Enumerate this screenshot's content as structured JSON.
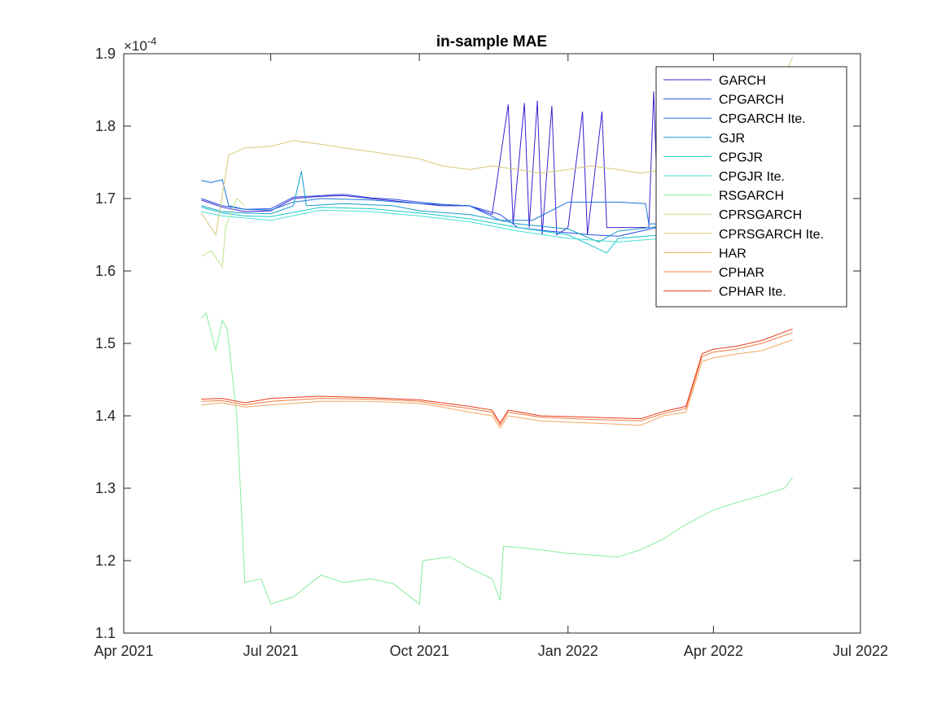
{
  "chart_data": {
    "type": "line",
    "title": "in-sample MAE",
    "xlabel": "",
    "ylabel": "",
    "y_exponent_label": "×10",
    "y_exponent_power": "-4",
    "xlim": [
      "2021-04-01",
      "2022-07-01"
    ],
    "ylim": [
      1.1,
      1.9
    ],
    "y_ticks": [
      "1.1",
      "1.2",
      "1.3",
      "1.4",
      "1.5",
      "1.6",
      "1.7",
      "1.8",
      "1.9"
    ],
    "x_ticks": [
      {
        "date": "2021-04-01",
        "label": "Apr 2021"
      },
      {
        "date": "2021-07-01",
        "label": "Jul 2021"
      },
      {
        "date": "2021-10-01",
        "label": "Oct 2021"
      },
      {
        "date": "2022-01-01",
        "label": "Jan 2022"
      },
      {
        "date": "2022-04-01",
        "label": "Apr 2022"
      },
      {
        "date": "2022-07-01",
        "label": "Jul 2022"
      }
    ],
    "grid": false,
    "legend_position": "top-right",
    "series": [
      {
        "name": "GARCH",
        "color": "#3a1fd0",
        "points": [
          [
            "2021-05-19",
            1.698
          ],
          [
            "2021-06-01",
            1.688
          ],
          [
            "2021-06-15",
            1.682
          ],
          [
            "2021-07-01",
            1.683
          ],
          [
            "2021-07-15",
            1.7
          ],
          [
            "2021-08-01",
            1.703
          ],
          [
            "2021-08-15",
            1.704
          ],
          [
            "2021-09-01",
            1.7
          ],
          [
            "2021-09-15",
            1.697
          ],
          [
            "2021-10-01",
            1.693
          ],
          [
            "2021-10-15",
            1.69
          ],
          [
            "2021-11-01",
            1.69
          ],
          [
            "2021-11-15",
            1.678
          ],
          [
            "2021-11-25",
            1.83
          ],
          [
            "2021-11-28",
            1.665
          ],
          [
            "2021-12-05",
            1.832
          ],
          [
            "2021-12-08",
            1.66
          ],
          [
            "2021-12-13",
            1.835
          ],
          [
            "2021-12-16",
            1.65
          ],
          [
            "2021-12-22",
            1.828
          ],
          [
            "2021-12-25",
            1.65
          ],
          [
            "2022-01-01",
            1.66
          ],
          [
            "2022-01-10",
            1.82
          ],
          [
            "2022-01-13",
            1.65
          ],
          [
            "2022-01-22",
            1.82
          ],
          [
            "2022-01-25",
            1.66
          ],
          [
            "2022-02-10",
            1.66
          ],
          [
            "2022-02-20",
            1.66
          ],
          [
            "2022-02-23",
            1.848
          ],
          [
            "2022-02-26",
            1.66
          ],
          [
            "2022-03-15",
            1.665
          ],
          [
            "2022-04-15",
            1.665
          ],
          [
            "2022-05-20",
            1.65
          ]
        ]
      },
      {
        "name": "CPGARCH",
        "color": "#2a4fe0",
        "points": [
          [
            "2021-05-19",
            1.7
          ],
          [
            "2021-06-01",
            1.69
          ],
          [
            "2021-06-15",
            1.685
          ],
          [
            "2021-07-01",
            1.686
          ],
          [
            "2021-07-15",
            1.702
          ],
          [
            "2021-08-01",
            1.704
          ],
          [
            "2021-08-15",
            1.706
          ],
          [
            "2021-09-01",
            1.701
          ],
          [
            "2021-09-15",
            1.699
          ],
          [
            "2021-10-01",
            1.695
          ],
          [
            "2021-10-15",
            1.692
          ],
          [
            "2021-11-01",
            1.69
          ],
          [
            "2021-11-20",
            1.678
          ],
          [
            "2021-12-01",
            1.66
          ],
          [
            "2021-12-20",
            1.655
          ],
          [
            "2022-01-15",
            1.65
          ],
          [
            "2022-02-01",
            1.648
          ],
          [
            "2022-03-01",
            1.662
          ],
          [
            "2022-04-01",
            1.668
          ],
          [
            "2022-05-20",
            1.66
          ]
        ]
      },
      {
        "name": "CPGARCH Ite.",
        "color": "#1a74d8",
        "points": [
          [
            "2021-05-19",
            1.725
          ],
          [
            "2021-05-25",
            1.722
          ],
          [
            "2021-06-01",
            1.726
          ],
          [
            "2021-06-05",
            1.69
          ],
          [
            "2021-06-15",
            1.685
          ],
          [
            "2021-07-01",
            1.684
          ],
          [
            "2021-07-15",
            1.695
          ],
          [
            "2021-08-01",
            1.7
          ],
          [
            "2021-09-01",
            1.698
          ],
          [
            "2021-10-01",
            1.693
          ],
          [
            "2021-11-01",
            1.69
          ],
          [
            "2021-11-20",
            1.67
          ],
          [
            "2021-12-10",
            1.67
          ],
          [
            "2022-01-01",
            1.695
          ],
          [
            "2022-02-01",
            1.695
          ],
          [
            "2022-02-18",
            1.693
          ],
          [
            "2022-02-20",
            1.665
          ],
          [
            "2022-04-01",
            1.665
          ],
          [
            "2022-05-20",
            1.67
          ]
        ]
      },
      {
        "name": "GJR",
        "color": "#159cc8",
        "points": [
          [
            "2021-05-19",
            1.69
          ],
          [
            "2021-06-01",
            1.682
          ],
          [
            "2021-06-15",
            1.68
          ],
          [
            "2021-07-01",
            1.679
          ],
          [
            "2021-07-15",
            1.69
          ],
          [
            "2021-07-20",
            1.738
          ],
          [
            "2021-07-23",
            1.69
          ],
          [
            "2021-08-15",
            1.693
          ],
          [
            "2021-09-15",
            1.69
          ],
          [
            "2021-10-01",
            1.683
          ],
          [
            "2021-11-01",
            1.678
          ],
          [
            "2021-12-01",
            1.665
          ],
          [
            "2022-01-01",
            1.658
          ],
          [
            "2022-01-20",
            1.64
          ],
          [
            "2022-02-01",
            1.655
          ],
          [
            "2022-03-01",
            1.662
          ],
          [
            "2022-04-01",
            1.668
          ],
          [
            "2022-05-20",
            1.662
          ]
        ]
      },
      {
        "name": "CPGJR",
        "color": "#18c8cc",
        "points": [
          [
            "2021-05-19",
            1.688
          ],
          [
            "2021-06-01",
            1.68
          ],
          [
            "2021-06-15",
            1.676
          ],
          [
            "2021-07-01",
            1.675
          ],
          [
            "2021-08-01",
            1.688
          ],
          [
            "2021-09-01",
            1.686
          ],
          [
            "2021-10-01",
            1.68
          ],
          [
            "2021-11-01",
            1.672
          ],
          [
            "2021-12-01",
            1.66
          ],
          [
            "2022-01-01",
            1.65
          ],
          [
            "2022-01-25",
            1.625
          ],
          [
            "2022-02-01",
            1.645
          ],
          [
            "2022-03-01",
            1.65
          ],
          [
            "2022-04-01",
            1.655
          ],
          [
            "2022-05-20",
            1.665
          ]
        ]
      },
      {
        "name": "CPGJR Ite.",
        "color": "#48e0d4",
        "points": [
          [
            "2021-05-19",
            1.682
          ],
          [
            "2021-06-01",
            1.676
          ],
          [
            "2021-07-01",
            1.67
          ],
          [
            "2021-08-01",
            1.684
          ],
          [
            "2021-09-01",
            1.682
          ],
          [
            "2021-10-01",
            1.676
          ],
          [
            "2021-11-01",
            1.668
          ],
          [
            "2021-12-01",
            1.655
          ],
          [
            "2022-01-01",
            1.645
          ],
          [
            "2022-02-01",
            1.64
          ],
          [
            "2022-03-01",
            1.645
          ],
          [
            "2022-04-01",
            1.65
          ],
          [
            "2022-05-20",
            1.66
          ]
        ]
      },
      {
        "name": "RSGARCH",
        "color": "#86ec9c",
        "points": [
          [
            "2021-05-19",
            1.535
          ],
          [
            "2021-05-22",
            1.542
          ],
          [
            "2021-05-28",
            1.49
          ],
          [
            "2021-06-01",
            1.532
          ],
          [
            "2021-06-04",
            1.52
          ],
          [
            "2021-06-10",
            1.4
          ],
          [
            "2021-06-15",
            1.17
          ],
          [
            "2021-06-25",
            1.175
          ],
          [
            "2021-07-01",
            1.14
          ],
          [
            "2021-07-15",
            1.15
          ],
          [
            "2021-08-01",
            1.18
          ],
          [
            "2021-08-15",
            1.17
          ],
          [
            "2021-09-01",
            1.175
          ],
          [
            "2021-09-15",
            1.168
          ],
          [
            "2021-10-01",
            1.14
          ],
          [
            "2021-10-03",
            1.2
          ],
          [
            "2021-10-20",
            1.205
          ],
          [
            "2021-11-01",
            1.19
          ],
          [
            "2021-11-15",
            1.175
          ],
          [
            "2021-11-20",
            1.145
          ],
          [
            "2021-11-22",
            1.22
          ],
          [
            "2021-12-15",
            1.215
          ],
          [
            "2022-01-01",
            1.21
          ],
          [
            "2022-02-01",
            1.205
          ],
          [
            "2022-02-15",
            1.215
          ],
          [
            "2022-03-01",
            1.23
          ],
          [
            "2022-03-15",
            1.25
          ],
          [
            "2022-04-01",
            1.27
          ],
          [
            "2022-04-15",
            1.28
          ],
          [
            "2022-05-01",
            1.29
          ],
          [
            "2022-05-15",
            1.3
          ],
          [
            "2022-05-20",
            1.315
          ]
        ]
      },
      {
        "name": "CPRSGARCH",
        "color": "#bde38a",
        "points": [
          [
            "2021-05-19",
            1.62
          ],
          [
            "2021-05-25",
            1.628
          ],
          [
            "2021-06-01",
            1.605
          ],
          [
            "2021-06-03",
            1.66
          ],
          [
            "2021-06-10",
            1.7
          ],
          [
            "2021-06-15",
            1.69
          ]
        ]
      },
      {
        "name": "CPRSGARCH Ite.",
        "color": "#d5c878",
        "points": [
          [
            "2021-05-19",
            1.68
          ],
          [
            "2021-05-28",
            1.65
          ],
          [
            "2021-06-05",
            1.76
          ],
          [
            "2021-06-15",
            1.77
          ],
          [
            "2021-07-01",
            1.772
          ],
          [
            "2021-07-15",
            1.78
          ],
          [
            "2021-08-01",
            1.775
          ],
          [
            "2021-08-15",
            1.77
          ],
          [
            "2021-09-01",
            1.765
          ],
          [
            "2021-09-15",
            1.76
          ],
          [
            "2021-10-01",
            1.755
          ],
          [
            "2021-10-15",
            1.745
          ],
          [
            "2021-11-01",
            1.74
          ],
          [
            "2021-11-15",
            1.745
          ],
          [
            "2021-12-01",
            1.74
          ],
          [
            "2021-12-15",
            1.735
          ],
          [
            "2022-01-01",
            1.74
          ],
          [
            "2022-01-15",
            1.745
          ],
          [
            "2022-02-01",
            1.74
          ],
          [
            "2022-02-15",
            1.735
          ],
          [
            "2022-03-01",
            1.74
          ],
          [
            "2022-03-15",
            1.745
          ],
          [
            "2022-04-01",
            1.74
          ],
          [
            "2022-04-15",
            1.755
          ],
          [
            "2022-05-01",
            1.765
          ],
          [
            "2022-05-15",
            1.87
          ],
          [
            "2022-05-20",
            1.895
          ]
        ]
      },
      {
        "name": "HAR",
        "color": "#f0a860",
        "points": [
          [
            "2021-05-19",
            1.415
          ],
          [
            "2021-06-01",
            1.418
          ],
          [
            "2021-06-15",
            1.412
          ],
          [
            "2021-07-01",
            1.415
          ],
          [
            "2021-08-01",
            1.42
          ],
          [
            "2021-09-01",
            1.42
          ],
          [
            "2021-10-01",
            1.417
          ],
          [
            "2021-10-15",
            1.412
          ],
          [
            "2021-11-01",
            1.405
          ],
          [
            "2021-11-15",
            1.4
          ],
          [
            "2021-11-20",
            1.383
          ],
          [
            "2021-11-25",
            1.4
          ],
          [
            "2021-12-15",
            1.393
          ],
          [
            "2022-01-15",
            1.39
          ],
          [
            "2022-02-15",
            1.387
          ],
          [
            "2022-03-01",
            1.4
          ],
          [
            "2022-03-15",
            1.405
          ],
          [
            "2022-03-25",
            1.475
          ],
          [
            "2022-04-01",
            1.48
          ],
          [
            "2022-04-15",
            1.485
          ],
          [
            "2022-05-01",
            1.49
          ],
          [
            "2022-05-20",
            1.505
          ]
        ]
      },
      {
        "name": "CPHAR",
        "color": "#f07a40",
        "points": [
          [
            "2021-05-19",
            1.42
          ],
          [
            "2021-06-01",
            1.421
          ],
          [
            "2021-06-15",
            1.415
          ],
          [
            "2021-07-01",
            1.42
          ],
          [
            "2021-08-01",
            1.424
          ],
          [
            "2021-09-01",
            1.423
          ],
          [
            "2021-10-01",
            1.42
          ],
          [
            "2021-10-15",
            1.415
          ],
          [
            "2021-11-01",
            1.41
          ],
          [
            "2021-11-15",
            1.405
          ],
          [
            "2021-11-20",
            1.387
          ],
          [
            "2021-11-25",
            1.405
          ],
          [
            "2021-12-15",
            1.398
          ],
          [
            "2022-01-15",
            1.395
          ],
          [
            "2022-02-15",
            1.393
          ],
          [
            "2022-03-01",
            1.403
          ],
          [
            "2022-03-15",
            1.41
          ],
          [
            "2022-03-25",
            1.482
          ],
          [
            "2022-04-01",
            1.488
          ],
          [
            "2022-04-15",
            1.492
          ],
          [
            "2022-05-01",
            1.5
          ],
          [
            "2022-05-20",
            1.515
          ]
        ]
      },
      {
        "name": "CPHAR Ite.",
        "color": "#e83a1c",
        "points": [
          [
            "2021-05-19",
            1.423
          ],
          [
            "2021-06-01",
            1.424
          ],
          [
            "2021-06-15",
            1.418
          ],
          [
            "2021-07-01",
            1.424
          ],
          [
            "2021-08-01",
            1.427
          ],
          [
            "2021-09-01",
            1.425
          ],
          [
            "2021-10-01",
            1.422
          ],
          [
            "2021-10-15",
            1.418
          ],
          [
            "2021-11-01",
            1.413
          ],
          [
            "2021-11-15",
            1.408
          ],
          [
            "2021-11-20",
            1.39
          ],
          [
            "2021-11-25",
            1.408
          ],
          [
            "2021-12-15",
            1.4
          ],
          [
            "2022-01-15",
            1.398
          ],
          [
            "2022-02-15",
            1.396
          ],
          [
            "2022-03-01",
            1.406
          ],
          [
            "2022-03-15",
            1.413
          ],
          [
            "2022-03-25",
            1.486
          ],
          [
            "2022-04-01",
            1.492
          ],
          [
            "2022-04-15",
            1.496
          ],
          [
            "2022-05-01",
            1.504
          ],
          [
            "2022-05-20",
            1.52
          ]
        ]
      }
    ]
  }
}
